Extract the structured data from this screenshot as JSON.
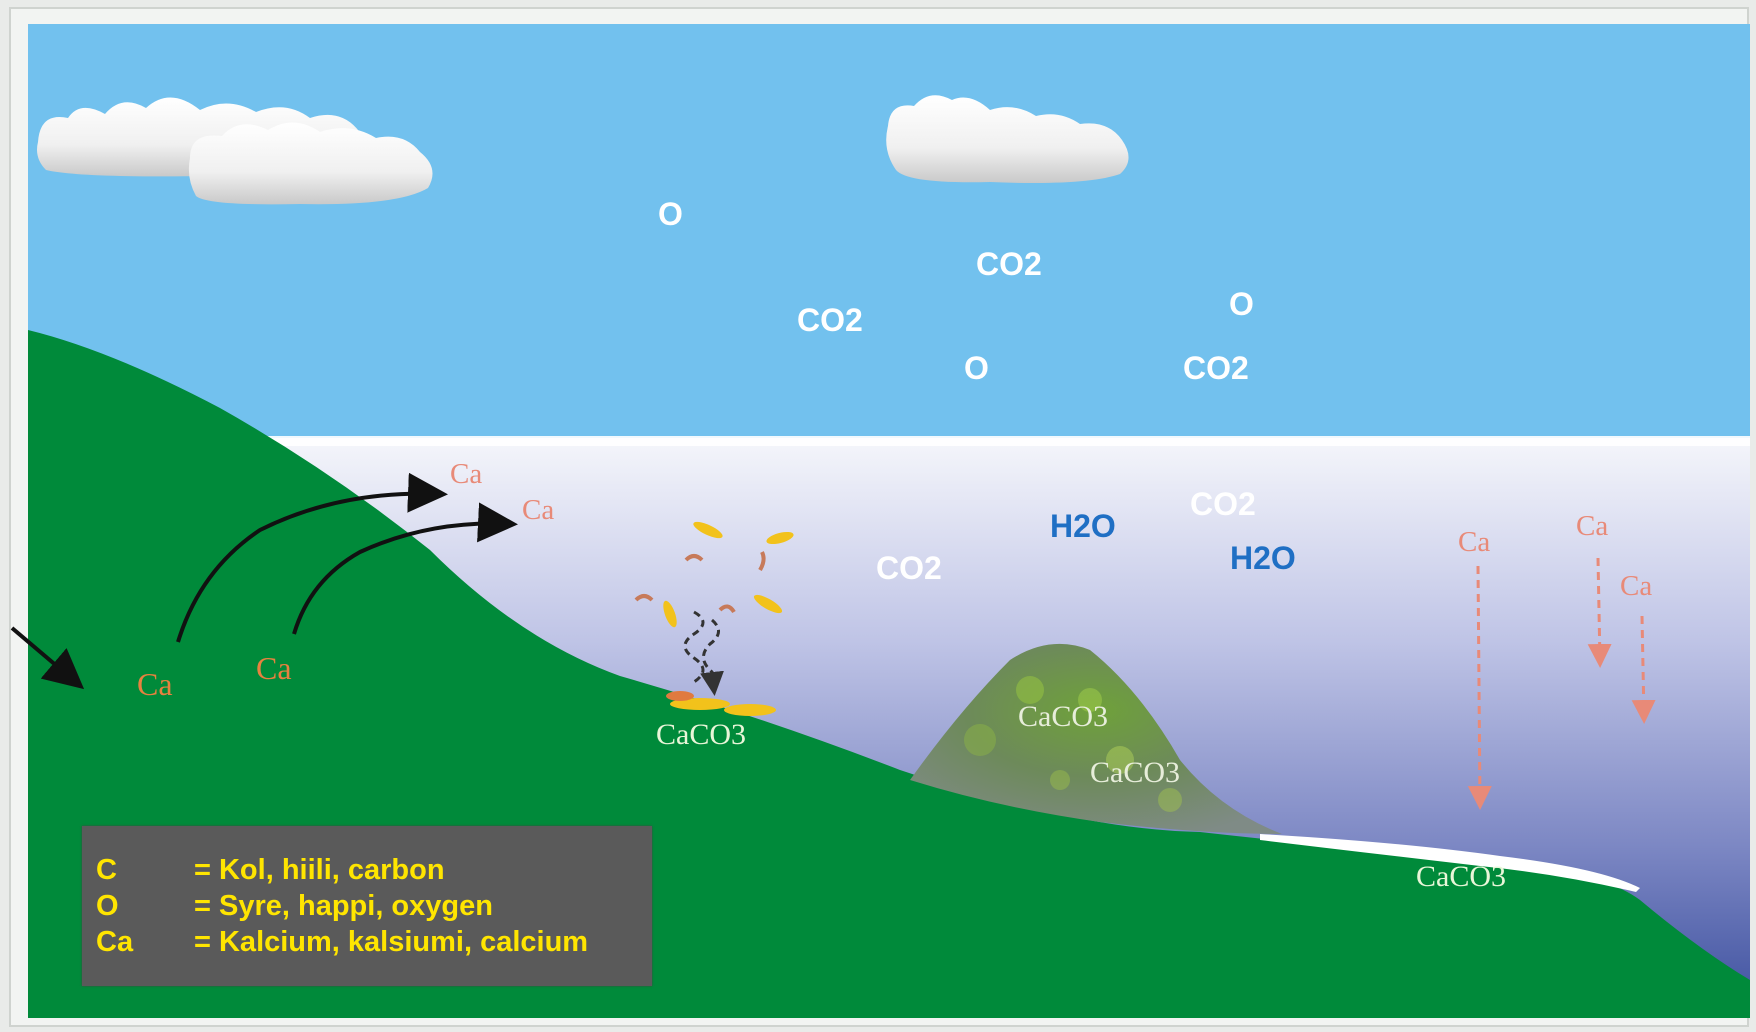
{
  "labels": {
    "air": [
      "O",
      "CO2",
      "CO2",
      "O",
      "O",
      "CO2"
    ],
    "water_co2": [
      "CO2",
      "CO2"
    ],
    "water_h2o": [
      "H2O",
      "H2O"
    ],
    "ca_land": [
      "Ca",
      "Ca"
    ],
    "ca_released": [
      "Ca",
      "Ca"
    ],
    "ca_sinking": [
      "Ca",
      "Ca",
      "Ca"
    ],
    "caco3": [
      "CaCO3",
      "CaCO3",
      "CaCO3",
      "CaCO3"
    ]
  },
  "legend": [
    {
      "symbol": "C",
      "definition": "= Kol, hiili, carbon"
    },
    {
      "symbol": "O",
      "definition": "= Syre, happi, oxygen"
    },
    {
      "symbol": "Ca",
      "definition": "= Kalcium, kalsiumi, calcium"
    }
  ],
  "colors": {
    "sky": "#72c1ee",
    "land": "#008a3a",
    "water_top": "#f2f3fa",
    "water_bottom": "#3c4f9e",
    "legend_bg": "#5a5a5a",
    "legend_text": "#ffe500",
    "ca_text": "#e88a78"
  }
}
